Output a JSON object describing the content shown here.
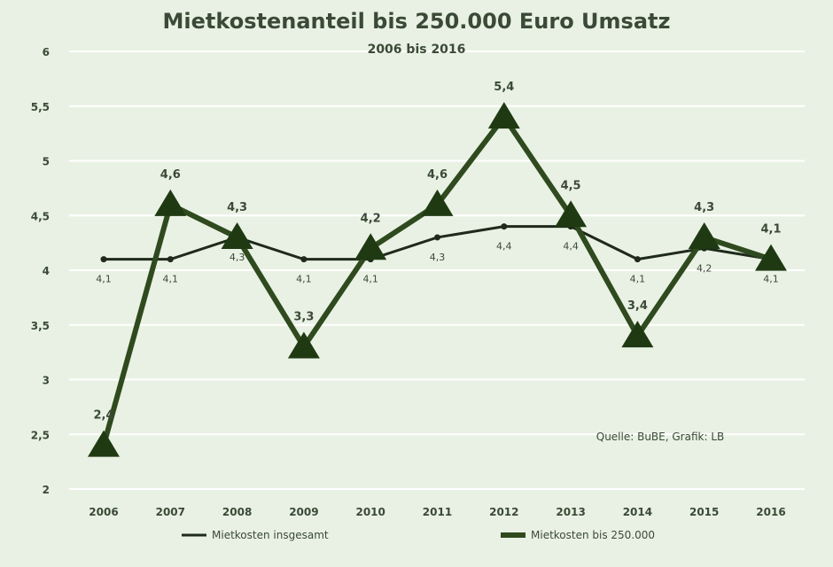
{
  "chart_data": {
    "type": "line",
    "title": "Mietkostenanteil bis 250.000 Euro Umsatz",
    "subtitle": "2006 bis 2016",
    "categories": [
      "2006",
      "2007",
      "2008",
      "2009",
      "2010",
      "2011",
      "2012",
      "2013",
      "2014",
      "2015",
      "2016"
    ],
    "ylim": [
      2,
      6
    ],
    "yticks": [
      "2",
      "2,5",
      "3",
      "3,5",
      "4",
      "4,5",
      "5",
      "5,5",
      "6"
    ],
    "grid": true,
    "legend_position": "bottom",
    "series": [
      {
        "name": "Mietkosten insgesamt",
        "values": [
          4.1,
          4.1,
          4.3,
          4.1,
          4.1,
          4.3,
          4.4,
          4.4,
          4.1,
          4.2,
          4.1
        ],
        "labels": [
          "4,1",
          "4,1",
          "4,3",
          "4,1",
          "4,1",
          "4,3",
          "4,4",
          "4,4",
          "4,1",
          "4,2",
          "4,1"
        ],
        "color": "#1e2a1a"
      },
      {
        "name": "Mietkosten bis 250.000",
        "values": [
          2.4,
          4.6,
          4.3,
          3.3,
          4.2,
          4.6,
          5.4,
          4.5,
          3.4,
          4.3,
          4.1
        ],
        "labels": [
          "2,4",
          "4,6",
          "4,3",
          "3,3",
          "4,2",
          "4,6",
          "5,4",
          "4,5",
          "3,4",
          "4,3",
          "4,1"
        ],
        "color": "#2f4a1e"
      }
    ],
    "annotation": "Quelle: BuBE, Grafik: LB"
  }
}
